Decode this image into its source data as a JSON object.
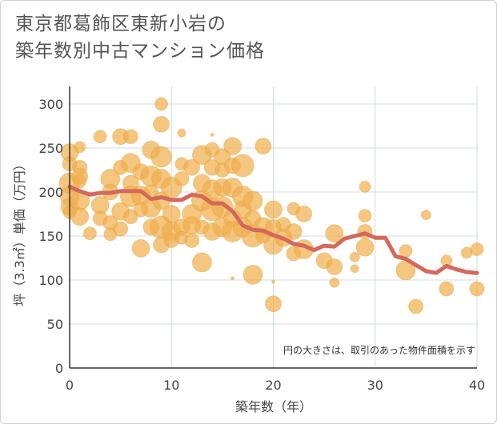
{
  "title_line1": "東京都葛飾区東新小岩の",
  "title_line2": "築年数別中古マンション価格",
  "chart_data": {
    "type": "scatter",
    "xlabel": "築年数（年）",
    "ylabel": "坪（3.3㎡）単価（万円）",
    "xlim": [
      0,
      40
    ],
    "ylim": [
      0,
      320
    ],
    "xticks": [
      "0",
      "10",
      "20",
      "30",
      "40"
    ],
    "yticks": [
      "0",
      "50",
      "100",
      "150",
      "200",
      "250",
      "300"
    ],
    "xtick_values": [
      0,
      10,
      20,
      30,
      40
    ],
    "ytick_values": [
      0,
      50,
      100,
      150,
      200,
      250,
      300
    ],
    "grid": true,
    "note": "円の大きさは、取引のあった物件面積を示す",
    "colors": {
      "bubble": "#f0b04e",
      "line": "#d4685a",
      "grid": "#d0dbe6",
      "axis": "#333333"
    },
    "trend_line": {
      "x": [
        0,
        1,
        2,
        3,
        4,
        5,
        6,
        7,
        8,
        9,
        10,
        11,
        12,
        13,
        14,
        15,
        16,
        17,
        18,
        19,
        20,
        21,
        22,
        23,
        24,
        25,
        26,
        27,
        28,
        29,
        30,
        31,
        32,
        33,
        34,
        35,
        36,
        37,
        38,
        39,
        40
      ],
      "y": [
        206,
        201,
        197,
        199,
        199,
        201,
        201,
        201,
        192,
        194,
        191,
        191,
        197,
        195,
        187,
        187,
        178,
        162,
        157,
        156,
        151,
        147,
        141,
        139,
        134,
        139,
        138,
        147,
        150,
        153,
        148,
        148,
        127,
        124,
        117,
        110,
        108,
        116,
        112,
        109,
        108
      ]
    },
    "points": [
      {
        "x": 0,
        "y": 245,
        "s": 11
      },
      {
        "x": 0,
        "y": 232,
        "s": 9
      },
      {
        "x": 0,
        "y": 210,
        "s": 13
      },
      {
        "x": 0,
        "y": 195,
        "s": 12
      },
      {
        "x": 0,
        "y": 183,
        "s": 11
      },
      {
        "x": 0,
        "y": 177,
        "s": 8
      },
      {
        "x": 1,
        "y": 251,
        "s": 7
      },
      {
        "x": 1,
        "y": 228,
        "s": 9
      },
      {
        "x": 1,
        "y": 218,
        "s": 10
      },
      {
        "x": 1,
        "y": 212,
        "s": 8
      },
      {
        "x": 1,
        "y": 190,
        "s": 12
      },
      {
        "x": 1,
        "y": 172,
        "s": 11
      },
      {
        "x": 2,
        "y": 153,
        "s": 8
      },
      {
        "x": 3,
        "y": 263,
        "s": 8
      },
      {
        "x": 3,
        "y": 185,
        "s": 11
      },
      {
        "x": 3,
        "y": 170,
        "s": 9
      },
      {
        "x": 4,
        "y": 215,
        "s": 12
      },
      {
        "x": 4,
        "y": 200,
        "s": 10
      },
      {
        "x": 4,
        "y": 165,
        "s": 9
      },
      {
        "x": 4,
        "y": 152,
        "s": 8
      },
      {
        "x": 5,
        "y": 263,
        "s": 10
      },
      {
        "x": 5,
        "y": 228,
        "s": 9
      },
      {
        "x": 5,
        "y": 178,
        "s": 11
      },
      {
        "x": 5,
        "y": 158,
        "s": 9
      },
      {
        "x": 6,
        "y": 263,
        "s": 9
      },
      {
        "x": 6,
        "y": 233,
        "s": 12
      },
      {
        "x": 6,
        "y": 210,
        "s": 10
      },
      {
        "x": 6,
        "y": 195,
        "s": 13
      },
      {
        "x": 6,
        "y": 172,
        "s": 9
      },
      {
        "x": 7,
        "y": 223,
        "s": 10
      },
      {
        "x": 7,
        "y": 196,
        "s": 12
      },
      {
        "x": 7,
        "y": 180,
        "s": 9
      },
      {
        "x": 7,
        "y": 136,
        "s": 11
      },
      {
        "x": 8,
        "y": 248,
        "s": 11
      },
      {
        "x": 8,
        "y": 218,
        "s": 13
      },
      {
        "x": 8,
        "y": 200,
        "s": 9
      },
      {
        "x": 8,
        "y": 182,
        "s": 12
      },
      {
        "x": 8,
        "y": 160,
        "s": 10
      },
      {
        "x": 9,
        "y": 300,
        "s": 8
      },
      {
        "x": 9,
        "y": 277,
        "s": 10
      },
      {
        "x": 9,
        "y": 240,
        "s": 13
      },
      {
        "x": 9,
        "y": 215,
        "s": 12
      },
      {
        "x": 9,
        "y": 190,
        "s": 11
      },
      {
        "x": 9,
        "y": 160,
        "s": 14
      },
      {
        "x": 9,
        "y": 140,
        "s": 10
      },
      {
        "x": 10,
        "y": 205,
        "s": 13
      },
      {
        "x": 10,
        "y": 175,
        "s": 11
      },
      {
        "x": 10,
        "y": 155,
        "s": 12
      },
      {
        "x": 10,
        "y": 145,
        "s": 9
      },
      {
        "x": 11,
        "y": 267,
        "s": 5
      },
      {
        "x": 11,
        "y": 232,
        "s": 8
      },
      {
        "x": 11,
        "y": 215,
        "s": 9
      },
      {
        "x": 11,
        "y": 160,
        "s": 10
      },
      {
        "x": 11,
        "y": 148,
        "s": 8
      },
      {
        "x": 12,
        "y": 228,
        "s": 10
      },
      {
        "x": 12,
        "y": 175,
        "s": 12
      },
      {
        "x": 12,
        "y": 162,
        "s": 11
      },
      {
        "x": 12,
        "y": 145,
        "s": 9
      },
      {
        "x": 13,
        "y": 242,
        "s": 12
      },
      {
        "x": 13,
        "y": 210,
        "s": 11
      },
      {
        "x": 13,
        "y": 190,
        "s": 13
      },
      {
        "x": 13,
        "y": 160,
        "s": 9
      },
      {
        "x": 13,
        "y": 120,
        "s": 12
      },
      {
        "x": 14,
        "y": 265,
        "s": 2
      },
      {
        "x": 14,
        "y": 248,
        "s": 9
      },
      {
        "x": 14,
        "y": 228,
        "s": 10
      },
      {
        "x": 14,
        "y": 203,
        "s": 12
      },
      {
        "x": 14,
        "y": 180,
        "s": 14
      },
      {
        "x": 14,
        "y": 155,
        "s": 11
      },
      {
        "x": 15,
        "y": 240,
        "s": 10
      },
      {
        "x": 15,
        "y": 225,
        "s": 9
      },
      {
        "x": 15,
        "y": 205,
        "s": 11
      },
      {
        "x": 15,
        "y": 183,
        "s": 13
      },
      {
        "x": 15,
        "y": 160,
        "s": 12
      },
      {
        "x": 16,
        "y": 252,
        "s": 11
      },
      {
        "x": 16,
        "y": 230,
        "s": 10
      },
      {
        "x": 16,
        "y": 205,
        "s": 12
      },
      {
        "x": 16,
        "y": 170,
        "s": 11
      },
      {
        "x": 16,
        "y": 155,
        "s": 13
      },
      {
        "x": 16,
        "y": 102,
        "s": 2
      },
      {
        "x": 17,
        "y": 230,
        "s": 14
      },
      {
        "x": 17,
        "y": 195,
        "s": 13
      },
      {
        "x": 17,
        "y": 180,
        "s": 11
      },
      {
        "x": 17,
        "y": 160,
        "s": 12
      },
      {
        "x": 18,
        "y": 190,
        "s": 12
      },
      {
        "x": 18,
        "y": 170,
        "s": 10
      },
      {
        "x": 18,
        "y": 150,
        "s": 14
      },
      {
        "x": 18,
        "y": 106,
        "s": 12
      },
      {
        "x": 19,
        "y": 252,
        "s": 10
      },
      {
        "x": 19,
        "y": 160,
        "s": 12
      },
      {
        "x": 19,
        "y": 150,
        "s": 9
      },
      {
        "x": 20,
        "y": 180,
        "s": 11
      },
      {
        "x": 20,
        "y": 160,
        "s": 10
      },
      {
        "x": 20,
        "y": 140,
        "s": 12
      },
      {
        "x": 20,
        "y": 98,
        "s": 2
      },
      {
        "x": 20,
        "y": 73,
        "s": 10
      },
      {
        "x": 21,
        "y": 163,
        "s": 9
      },
      {
        "x": 21,
        "y": 148,
        "s": 11
      },
      {
        "x": 22,
        "y": 181,
        "s": 8
      },
      {
        "x": 22,
        "y": 155,
        "s": 10
      },
      {
        "x": 22,
        "y": 130,
        "s": 9
      },
      {
        "x": 23,
        "y": 175,
        "s": 10
      },
      {
        "x": 23,
        "y": 135,
        "s": 12
      },
      {
        "x": 25,
        "y": 122,
        "s": 10
      },
      {
        "x": 26,
        "y": 153,
        "s": 11
      },
      {
        "x": 26,
        "y": 115,
        "s": 10
      },
      {
        "x": 26,
        "y": 97,
        "s": 6
      },
      {
        "x": 28,
        "y": 126,
        "s": 6
      },
      {
        "x": 28,
        "y": 113,
        "s": 5
      },
      {
        "x": 29,
        "y": 206,
        "s": 7
      },
      {
        "x": 29,
        "y": 173,
        "s": 8
      },
      {
        "x": 29,
        "y": 155,
        "s": 9
      },
      {
        "x": 29,
        "y": 137,
        "s": 11
      },
      {
        "x": 33,
        "y": 133,
        "s": 8
      },
      {
        "x": 33,
        "y": 111,
        "s": 12
      },
      {
        "x": 34,
        "y": 70,
        "s": 9
      },
      {
        "x": 35,
        "y": 174,
        "s": 6
      },
      {
        "x": 37,
        "y": 122,
        "s": 7
      },
      {
        "x": 37,
        "y": 90,
        "s": 9
      },
      {
        "x": 39,
        "y": 131,
        "s": 7
      },
      {
        "x": 40,
        "y": 135,
        "s": 8
      },
      {
        "x": 40,
        "y": 90,
        "s": 9
      }
    ]
  }
}
